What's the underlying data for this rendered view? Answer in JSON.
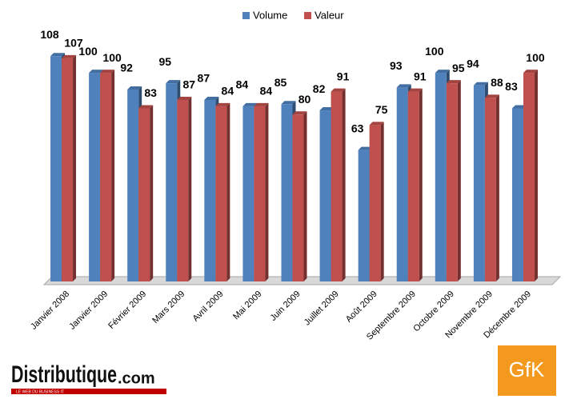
{
  "chart_data": {
    "type": "bar",
    "categories": [
      "Janvier 2008",
      "Janvier 2009",
      "Février 2009",
      "Mars 2009",
      "Avril 2009",
      "Mai 2009",
      "Juin 2009",
      "Juillet 2009",
      "Août 2009",
      "Septembre 2009",
      "Octobre 2009",
      "Novembre 2009",
      "Décembre 2009"
    ],
    "series": [
      {
        "name": "Volume",
        "color": "#4f81bd",
        "values": [
          108,
          100,
          92,
          95,
          87,
          84,
          85,
          82,
          63,
          93,
          100,
          94,
          83
        ]
      },
      {
        "name": "Valeur",
        "color": "#c0504d",
        "values": [
          107,
          100,
          83,
          87,
          84,
          84,
          80,
          91,
          75,
          91,
          95,
          88,
          100
        ]
      }
    ],
    "ylim": [
      0,
      110
    ],
    "legend": "top"
  },
  "branding": {
    "publisher": "Distributique",
    "publisher_suffix": ".com",
    "tagline": "LE WEB DU BUSINESS IT",
    "source": "GfK"
  }
}
